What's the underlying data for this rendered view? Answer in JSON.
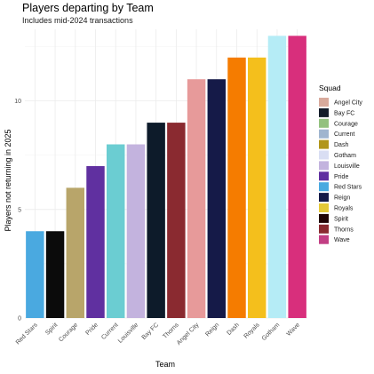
{
  "chart_data": {
    "type": "bar",
    "title": "Players departing by Team",
    "subtitle": "Includes mid-2024 transactions",
    "xlabel": "Team",
    "ylabel": "Players not returning in 2025",
    "ylim": [
      0,
      13.3
    ],
    "yticks": [
      0,
      5,
      10
    ],
    "grid": true,
    "legend_position": "right",
    "categories": [
      "Red Stars",
      "Spirit",
      "Courage",
      "Pride",
      "Current",
      "Louisville",
      "Bay FC",
      "Thorns",
      "Angel City",
      "Reign",
      "Dash",
      "Royals",
      "Gotham",
      "Wave"
    ],
    "values": [
      4,
      4,
      6,
      7,
      8,
      8,
      9,
      9,
      11,
      11,
      12,
      12,
      13,
      13
    ],
    "bar_colors": [
      "#4aa9e0",
      "#0b0b0b",
      "#b8a56a",
      "#6030a0",
      "#6bcdd2",
      "#c3b3de",
      "#0d1b2a",
      "#8a2a30",
      "#e79a9a",
      "#151a48",
      "#f57c00",
      "#f4bf1c",
      "#b5ecf6",
      "#d82f7c"
    ],
    "legend": {
      "title": "Squad",
      "items": [
        {
          "label": "Angel City",
          "color": "#d8aa9c"
        },
        {
          "label": "Bay FC",
          "color": "#141c2a"
        },
        {
          "label": "Courage",
          "color": "#93c17f"
        },
        {
          "label": "Current",
          "color": "#9fb5cf"
        },
        {
          "label": "Dash",
          "color": "#b1961a"
        },
        {
          "label": "Gotham",
          "color": "#d9def3"
        },
        {
          "label": "Louisville",
          "color": "#c3b3de"
        },
        {
          "label": "Pride",
          "color": "#6030a0"
        },
        {
          "label": "Red Stars",
          "color": "#4aa9e0"
        },
        {
          "label": "Reign",
          "color": "#151a48"
        },
        {
          "label": "Royals",
          "color": "#e4c838"
        },
        {
          "label": "Spirit",
          "color": "#200405"
        },
        {
          "label": "Thorns",
          "color": "#8a2a30"
        },
        {
          "label": "Wave",
          "color": "#c23f84"
        }
      ]
    }
  }
}
